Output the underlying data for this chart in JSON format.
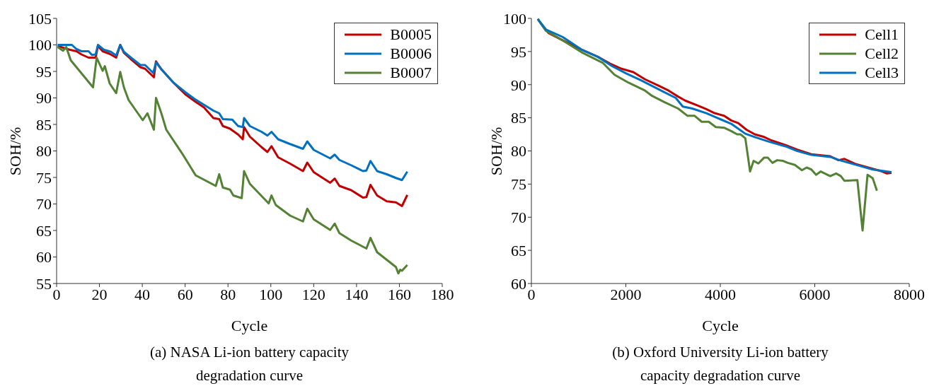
{
  "chart_data": [
    {
      "type": "line",
      "xlabel": "Cycle",
      "ylabel": "SOH/%",
      "annotations": [
        "(a) NASA Li-ion battery capacity degradation curve"
      ],
      "xlim": [
        0,
        180
      ],
      "ylim": [
        55,
        105
      ],
      "xticks": [
        0,
        20,
        40,
        60,
        80,
        100,
        120,
        140,
        160,
        180
      ],
      "yticks": [
        55,
        60,
        65,
        70,
        75,
        80,
        85,
        90,
        95,
        100,
        105
      ],
      "legend": "top right",
      "marker": "none",
      "line_style": "solid",
      "series": [
        {
          "name": "B0005",
          "color": "#c00000",
          "x": [
            0.5,
            6,
            9.3,
            11.6,
            14.9,
            18.2,
            19.3,
            21.5,
            24.8,
            27.8,
            29.7,
            31.4,
            34.7,
            39.1,
            41.3,
            45.4,
            46.4,
            48.9,
            54.5,
            60,
            64.4,
            68.8,
            73.2,
            75.9,
            77.6,
            80.9,
            84.7,
            86.9,
            87.5,
            90.2,
            95.7,
            98.4,
            100.3,
            103.4,
            109,
            115,
            117,
            120,
            127.7,
            129.8,
            132,
            137.5,
            143,
            144.6,
            146.5,
            149.6,
            154.1,
            158.4,
            161.2,
            163.7
          ],
          "values": [
            99.8,
            99.1,
            98.8,
            98.2,
            97.6,
            97.6,
            99.8,
            98.8,
            98.3,
            97.6,
            100,
            98.5,
            97.3,
            95.8,
            95.5,
            93.9,
            96.9,
            95.4,
            92.9,
            90.7,
            89.4,
            88.2,
            86.2,
            86,
            84.7,
            84.2,
            83.1,
            82.2,
            84.5,
            82.7,
            80.7,
            79.8,
            80.9,
            78.8,
            77.6,
            76.2,
            77.8,
            76,
            74,
            74.8,
            73.4,
            72.6,
            71.2,
            71.3,
            73.6,
            71.6,
            70.5,
            70.3,
            69.6,
            71.7
          ]
        },
        {
          "name": "B0006",
          "color": "#0070c0",
          "x": [
            0.5,
            7.1,
            9.3,
            11.6,
            14.9,
            16.5,
            18.2,
            19.3,
            22,
            25.3,
            27.8,
            29.7,
            31.4,
            34.7,
            39.1,
            41.3,
            45.1,
            46.4,
            48.9,
            54.5,
            60,
            64.4,
            73.2,
            75.9,
            77.6,
            82,
            84.7,
            86.9,
            87.5,
            90.2,
            95.7,
            98.4,
            100.3,
            103.4,
            109,
            115,
            117,
            120,
            127.7,
            129.8,
            132,
            137.5,
            143,
            144.6,
            146.5,
            149.6,
            154.1,
            158.4,
            161.2,
            163.7
          ],
          "values": [
            100,
            100,
            99.2,
            98.8,
            98.8,
            98.1,
            98.2,
            100,
            99.1,
            98.7,
            98,
            100,
            98.7,
            97.6,
            96.2,
            96.2,
            94.7,
            96.7,
            95.4,
            92.9,
            91.1,
            89.8,
            87.6,
            87.1,
            86,
            85.9,
            84.7,
            84.5,
            86.2,
            84.7,
            83.6,
            82.9,
            83.6,
            82.2,
            81.3,
            80.4,
            81.8,
            80.2,
            78.6,
            79.3,
            78.3,
            77.3,
            76.2,
            76.3,
            78.1,
            76.2,
            75.6,
            74.9,
            74.5,
            76.1
          ]
        },
        {
          "name": "B0007",
          "color": "#548235",
          "x": [
            0.5,
            3,
            4.5,
            6.6,
            17,
            18.7,
            21.5,
            22.5,
            24.8,
            27.8,
            29.7,
            31.4,
            33.6,
            40.2,
            42.4,
            45.4,
            46.4,
            48.9,
            51.2,
            58.8,
            64.9,
            74.3,
            75.9,
            77.6,
            80.9,
            82.5,
            86.4,
            87.5,
            90.2,
            99,
            100.3,
            102.3,
            109,
            115,
            117,
            120,
            127.7,
            129.8,
            132,
            137.5,
            144.6,
            146.5,
            149.6,
            158.4,
            159.5,
            160.4,
            161.2,
            163.7
          ],
          "values": [
            99.6,
            98.9,
            99.6,
            97.1,
            92,
            97.6,
            95.1,
            96,
            92.7,
            90.9,
            94.9,
            92,
            89.6,
            85.8,
            87.1,
            84,
            90,
            87.1,
            84,
            79.4,
            75.4,
            73.4,
            75.6,
            73.1,
            72.7,
            71.6,
            71.1,
            76.2,
            73.8,
            70.1,
            71.6,
            69.8,
            67.8,
            66.7,
            69.1,
            67.1,
            65.1,
            66.3,
            64.5,
            63.1,
            61.6,
            63.6,
            60.9,
            58.1,
            56.9,
            57.6,
            57.4,
            58.5
          ]
        }
      ]
    },
    {
      "type": "line",
      "xlabel": "Cycle",
      "ylabel": "SOH/%",
      "annotations": [
        "(b) Oxford University Li-ion battery capacity degradation curve"
      ],
      "xlim": [
        0,
        8000
      ],
      "ylim": [
        60,
        100
      ],
      "xticks": [
        0,
        2000,
        4000,
        6000,
        8000
      ],
      "yticks": [
        60,
        65,
        70,
        75,
        80,
        85,
        90,
        95,
        100
      ],
      "legend": "top right",
      "marker": "none",
      "line_style": "solid",
      "series": [
        {
          "name": "Cell1",
          "color": "#c00000",
          "x": [
            135,
            235,
            360,
            660,
            1060,
            1408,
            1660,
            1910,
            2157,
            2407,
            2707,
            2906,
            3106,
            3256,
            3506,
            3705,
            3880,
            4080,
            4230,
            4380,
            4554,
            4730,
            4929,
            5079,
            5379,
            5628,
            5927,
            6327,
            6502,
            6627,
            6876,
            7226,
            7427,
            7528,
            7625
          ],
          "values": [
            99.9,
            98.9,
            97.8,
            96.7,
            95.3,
            94.2,
            93.2,
            92.4,
            91.9,
            90.8,
            89.8,
            89.1,
            88.2,
            87.6,
            86.9,
            86.3,
            85.7,
            85.3,
            84.6,
            84.2,
            83.2,
            82.5,
            82.1,
            81.6,
            80.9,
            80.2,
            79.5,
            79.2,
            78.6,
            78.8,
            78,
            77.3,
            76.9,
            76.6,
            76.7
          ]
        },
        {
          "name": "Cell2",
          "color": "#548235",
          "x": [
            135,
            310,
            660,
            1060,
            1510,
            1760,
            2057,
            2407,
            2557,
            2806,
            3106,
            3306,
            3456,
            3606,
            3755,
            3905,
            4080,
            4230,
            4355,
            4430,
            4530,
            4630,
            4705,
            4805,
            4929,
            5004,
            5104,
            5204,
            5329,
            5429,
            5578,
            5728,
            5828,
            5927,
            6028,
            6127,
            6327,
            6452,
            6552,
            6627,
            6902,
            7012,
            7117,
            7226,
            7316
          ],
          "values": [
            99.9,
            98.1,
            96.7,
            94.9,
            93.3,
            91.5,
            90.3,
            89.1,
            88.3,
            87.4,
            86.4,
            85.3,
            85.3,
            84.4,
            84.4,
            83.6,
            83.5,
            83,
            82.5,
            82.5,
            81.9,
            76.9,
            78.5,
            78.1,
            79,
            79,
            78.2,
            78.6,
            78.5,
            78.2,
            77.9,
            77.1,
            77.5,
            77.2,
            76.4,
            76.9,
            76.2,
            76.6,
            76.2,
            75.5,
            75.6,
            68,
            76.4,
            75.9,
            74
          ]
        },
        {
          "name": "Cell3",
          "color": "#0070c0",
          "x": [
            135,
            310,
            660,
            1060,
            1408,
            1708,
            2007,
            2307,
            2557,
            2806,
            3056,
            3206,
            3406,
            3705,
            3930,
            4230,
            4530,
            4730,
            5029,
            5379,
            5628,
            5927,
            6327,
            6527,
            6926,
            7226,
            7625
          ],
          "values": [
            99.9,
            98.3,
            97.2,
            95.3,
            94.2,
            92.8,
            91.7,
            90.7,
            89.8,
            88.9,
            88,
            86.7,
            86.4,
            85.7,
            85,
            84.1,
            82.6,
            82.1,
            81.4,
            80.7,
            80,
            79.4,
            79.1,
            78.6,
            77.8,
            77.2,
            76.8
          ]
        }
      ]
    }
  ]
}
